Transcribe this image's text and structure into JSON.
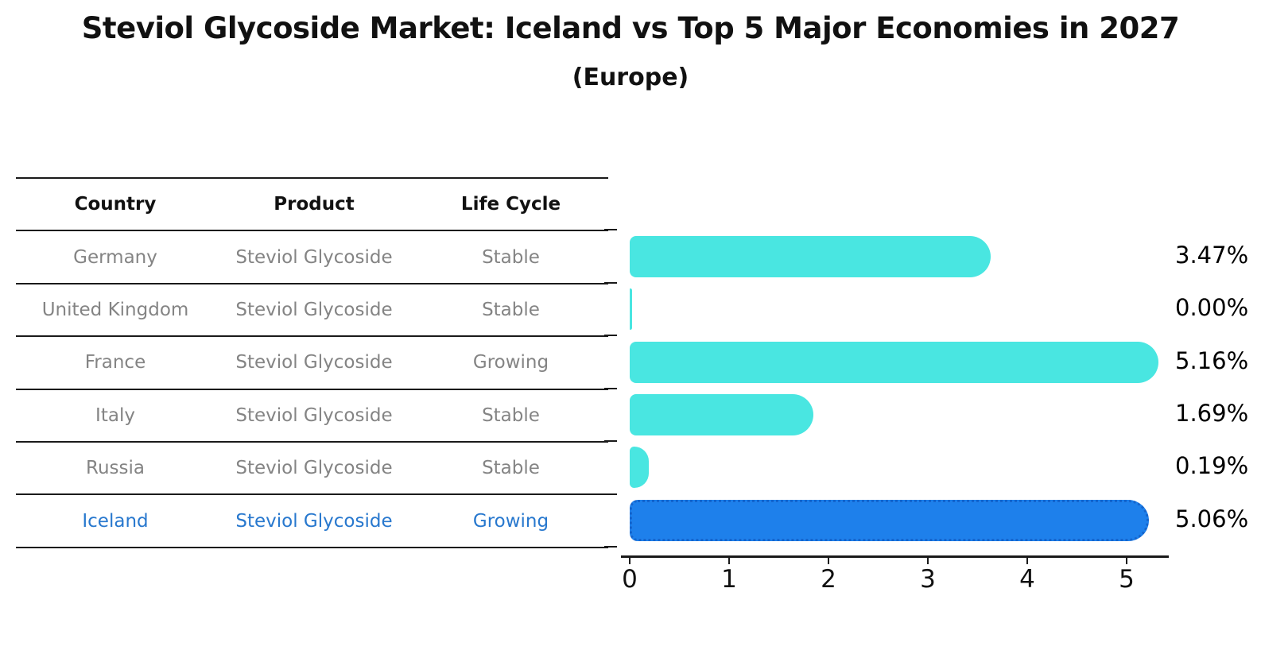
{
  "chart_data": {
    "type": "bar",
    "orientation": "horizontal",
    "title": "Steviol Glycoside Market: Iceland vs Top 5 Major Economies in 2027",
    "subtitle": "(Europe)",
    "categories": [
      "Germany",
      "United Kingdom",
      "France",
      "Italy",
      "Russia",
      "Iceland"
    ],
    "values": [
      3.47,
      0.0,
      5.16,
      1.69,
      0.19,
      5.06
    ],
    "value_labels": [
      "3.47%",
      "0.00%",
      "5.16%",
      "1.69%",
      "0.19%",
      "5.06%"
    ],
    "x_ticks": [
      0,
      1,
      2,
      3,
      4,
      5
    ],
    "xlim": [
      0,
      5.42
    ],
    "grid": false,
    "legend": false,
    "highlight_index": 5,
    "bar_color": "#49e6e1",
    "highlight_bar_color": "#1e80eb",
    "highlight_border_color": "#1565cd"
  },
  "table": {
    "columns": [
      "Country",
      "Product",
      "Life Cycle"
    ],
    "rows": [
      {
        "country": "Germany",
        "product": "Steviol Glycoside",
        "life_cycle": "Stable",
        "highlight": false
      },
      {
        "country": "United Kingdom",
        "product": "Steviol Glycoside",
        "life_cycle": "Stable",
        "highlight": false
      },
      {
        "country": "France",
        "product": "Steviol Glycoside",
        "life_cycle": "Growing",
        "highlight": false
      },
      {
        "country": "Italy",
        "product": "Steviol Glycoside",
        "life_cycle": "Stable",
        "highlight": false
      },
      {
        "country": "Russia",
        "product": "Steviol Glycoside",
        "life_cycle": "Stable",
        "highlight": false
      },
      {
        "country": "Iceland",
        "product": "Steviol Glycoside",
        "life_cycle": "Growing",
        "highlight": true
      }
    ],
    "highlight_text_color": "#2878ce",
    "row_text_color": "#848484"
  }
}
